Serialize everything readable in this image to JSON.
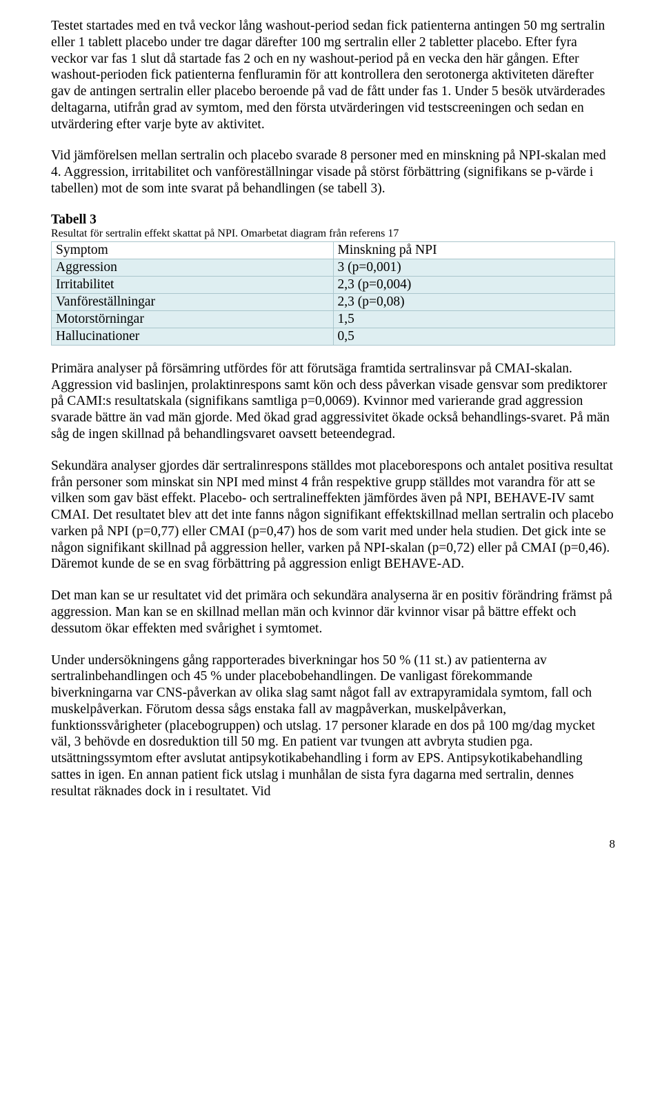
{
  "paragraphs": {
    "p1": "Testet startades med en två veckor lång washout-period sedan fick patienterna antingen 50 mg sertralin eller 1 tablett placebo under tre dagar därefter 100 mg sertralin eller 2 tabletter placebo. Efter fyra veckor var fas 1 slut då startade fas 2 och en ny washout-period på en vecka den här gången. Efter washout-perioden fick patienterna fenfluramin för att kontrollera den serotonerga aktiviteten därefter gav de antingen sertralin eller placebo beroende på vad de fått under fas 1. Under 5 besök utvärderades deltagarna, utifrån grad av symtom, med den första utvärderingen vid testscreeningen och sedan en utvärdering efter varje byte av aktivitet.",
    "p2": "Vid jämförelsen mellan sertralin och placebo svarade 8 personer med en minskning på NPI-skalan med 4. Aggression, irritabilitet och vanföreställningar visade på störst förbättring (signifikans se p-värde i tabellen) mot de som inte svarat på behandlingen (se tabell 3).",
    "p3": "Primära analyser på försämring utfördes för att förutsäga framtida sertralinsvar på CMAI-skalan. Aggression vid baslinjen, prolaktinrespons samt kön och dess påverkan visade gensvar som prediktorer på CAMI:s resultatskala (signifikans samtliga p=0,0069). Kvinnor med varierande grad aggression svarade bättre än vad män gjorde. Med ökad grad aggressivitet ökade också behandlings-svaret. På män såg de ingen skillnad på behandlingsvaret oavsett beteendegrad.",
    "p4": "Sekundära analyser gjordes där sertralinrespons ställdes mot placeborespons och antalet positiva resultat från personer som minskat sin NPI med minst 4 från respektive grupp ställdes mot varandra för att se vilken som gav bäst effekt. Placebo- och sertralineffekten jämfördes även på NPI, BEHAVE-IV samt CMAI. Det resultatet blev att det inte fanns någon signifikant effektskillnad mellan sertralin och placebo varken på NPI (p=0,77) eller CMAI (p=0,47) hos de som varit med under hela studien. Det gick inte se någon signifikant skillnad på aggression heller, varken på NPI-skalan (p=0,72) eller på CMAI (p=0,46). Däremot kunde de se en svag förbättring på aggression enligt BEHAVE-AD.",
    "p5": "Det man kan se ur resultatet vid det primära och sekundära analyserna är en positiv förändring främst på aggression. Man kan se en skillnad mellan män och kvinnor där kvinnor visar på bättre effekt och dessutom ökar effekten med svårighet i symtomet.",
    "p6": "Under undersökningens gång rapporterades biverkningar hos 50 % (11 st.) av patienterna av sertralinbehandlingen och 45 % under placebobehandlingen. De vanligast förekommande biverkningarna var CNS-påverkan av olika slag samt något fall av extrapyramidala symtom, fall och muskelpåverkan. Förutom dessa sågs enstaka fall av magpåverkan, muskelpåverkan, funktionssvårigheter (placebogruppen) och utslag. 17 personer klarade en dos på 100 mg/dag mycket väl, 3 behövde en dosreduktion till 50 mg. En patient var tvungen att avbryta studien pga. utsättningssymtom efter avslutat antipsykotikabehandling i form av EPS. Antipsykotikabehandling sattes in igen. En annan patient fick utslag i munhålan de sista fyra dagarna med sertralin, dennes resultat räknades dock in i resultatet. Vid"
  },
  "table": {
    "title": "Tabell 3",
    "subtitle": "Resultat för sertralin effekt skattat på NPI. Omarbetat diagram från referens 17",
    "header": {
      "c1": "Symptom",
      "c2": "Minskning på NPI"
    },
    "rows": [
      {
        "c1": "Aggression",
        "c2": "3 (p=0,001)"
      },
      {
        "c1": "Irritabilitet",
        "c2": "2,3 (p=0,004)"
      },
      {
        "c1": "Vanföreställningar",
        "c2": "2,3 (p=0,08)"
      },
      {
        "c1": "Motorstörningar",
        "c2": "1,5"
      },
      {
        "c1": "Hallucinationer",
        "c2": "0,5"
      }
    ],
    "styling": {
      "row_bg": "#deeef1",
      "border": "#a9c5cc",
      "header_bg": "#ffffff"
    }
  },
  "page_number": "8"
}
